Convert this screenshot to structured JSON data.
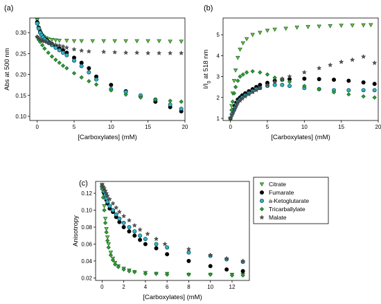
{
  "chart_data": [
    {
      "panel_label": "(a)",
      "type": "scatter",
      "xlabel": "[Carboxylates] (mM)",
      "ylabel": "Abs at 500 nm",
      "xlim": [
        -1,
        20
      ],
      "ylim": [
        0.09,
        0.335
      ],
      "xticks": [
        0,
        5,
        10,
        15,
        20
      ],
      "yticks": [
        0.1,
        0.15,
        0.2,
        0.25,
        0.3
      ],
      "ytick_labels": [
        "0.10",
        "0.15",
        "0.20",
        "0.25",
        "0.30"
      ],
      "series": [
        {
          "key": "citrate",
          "x": [
            0,
            0.1,
            0.2,
            0.35,
            0.5,
            0.7,
            0.9,
            1.2,
            1.5,
            2,
            2.5,
            3,
            4,
            5,
            6,
            7.5,
            9,
            10.5,
            12,
            13.5,
            15,
            16.5,
            18,
            19.5
          ],
          "y": [
            0.33,
            0.32,
            0.31,
            0.305,
            0.298,
            0.293,
            0.29,
            0.287,
            0.285,
            0.283,
            0.282,
            0.281,
            0.281,
            0.28,
            0.28,
            0.28,
            0.28,
            0.28,
            0.28,
            0.28,
            0.28,
            0.28,
            0.279,
            0.279
          ]
        },
        {
          "key": "fumarate",
          "x": [
            0,
            0.2,
            0.4,
            0.6,
            0.8,
            1.0,
            1.3,
            1.6,
            2.0,
            2.5,
            3,
            3.5,
            4,
            5,
            6,
            7,
            8,
            10,
            12,
            14,
            16,
            18,
            19.5
          ],
          "y": [
            0.325,
            0.312,
            0.302,
            0.295,
            0.29,
            0.285,
            0.282,
            0.277,
            0.273,
            0.268,
            0.263,
            0.258,
            0.252,
            0.24,
            0.228,
            0.215,
            0.195,
            0.175,
            0.16,
            0.148,
            0.135,
            0.122,
            0.112
          ]
        },
        {
          "key": "aketoglutarate",
          "x": [
            0,
            0.2,
            0.4,
            0.6,
            0.8,
            1.0,
            1.3,
            1.6,
            2.0,
            2.5,
            3,
            3.5,
            4,
            5,
            6,
            7,
            8,
            10,
            12,
            14,
            16,
            18,
            19.5
          ],
          "y": [
            0.322,
            0.31,
            0.3,
            0.294,
            0.289,
            0.284,
            0.28,
            0.275,
            0.27,
            0.264,
            0.258,
            0.252,
            0.246,
            0.233,
            0.22,
            0.205,
            0.188,
            0.165,
            0.158,
            0.15,
            0.14,
            0.128,
            0.118
          ]
        },
        {
          "key": "tricarballylate",
          "x": [
            0,
            0.2,
            0.4,
            0.7,
            1.0,
            1.5,
            2.0,
            2.5,
            3,
            3.5,
            4,
            5,
            6,
            7,
            8,
            10,
            12,
            14,
            16,
            18,
            19.5
          ],
          "y": [
            0.29,
            0.283,
            0.278,
            0.27,
            0.262,
            0.252,
            0.243,
            0.235,
            0.228,
            0.221,
            0.215,
            0.203,
            0.193,
            0.184,
            0.176,
            0.162,
            0.152,
            0.145,
            0.14,
            0.137,
            0.135
          ]
        },
        {
          "key": "malate",
          "x": [
            0,
            0.2,
            0.4,
            0.6,
            0.8,
            1.0,
            1.3,
            1.6,
            2.0,
            2.5,
            3,
            3.5,
            4,
            5,
            6,
            7,
            9,
            10.5,
            12,
            13.5,
            15,
            16.5,
            18,
            19.5
          ],
          "y": [
            0.29,
            0.287,
            0.284,
            0.282,
            0.28,
            0.279,
            0.277,
            0.275,
            0.273,
            0.271,
            0.269,
            0.267,
            0.264,
            0.26,
            0.257,
            0.255,
            0.254,
            0.253,
            0.252,
            0.252,
            0.251,
            0.251,
            0.251,
            0.251
          ]
        }
      ]
    },
    {
      "panel_label": "(b)",
      "type": "scatter",
      "xlabel": "[Carboxylates] (mM)",
      "ylabel": "I/I0 at 518 nm",
      "ylabel_main": "I/I",
      "ylabel_sub": "0",
      "ylabel_rest": " at 518 nm",
      "xlim": [
        -1,
        20
      ],
      "ylim": [
        0.9,
        5.8
      ],
      "xticks": [
        0,
        5,
        10,
        15,
        20
      ],
      "yticks": [
        1,
        2,
        3,
        4,
        5
      ],
      "ytick_labels": [
        "1",
        "2",
        "3",
        "4",
        "5"
      ],
      "series": [
        {
          "key": "citrate",
          "x": [
            0,
            0.15,
            0.3,
            0.5,
            0.7,
            1.0,
            1.3,
            1.7,
            2.2,
            3,
            4,
            5,
            6,
            7.5,
            9,
            10.5,
            12,
            13.5,
            15,
            16.5,
            18,
            19
          ],
          "y": [
            1.0,
            1.6,
            2.2,
            2.8,
            3.3,
            3.9,
            4.3,
            4.6,
            4.8,
            5.0,
            5.1,
            5.2,
            5.25,
            5.3,
            5.35,
            5.38,
            5.4,
            5.42,
            5.44,
            5.45,
            5.46,
            5.47
          ]
        },
        {
          "key": "fumarate",
          "x": [
            0,
            0.2,
            0.4,
            0.6,
            0.8,
            1.0,
            1.3,
            1.6,
            2.0,
            2.5,
            3,
            3.5,
            4,
            5,
            6,
            7,
            8,
            10,
            12,
            14,
            16,
            18,
            19.5
          ],
          "y": [
            1.0,
            1.2,
            1.4,
            1.6,
            1.75,
            1.9,
            2.0,
            2.1,
            2.2,
            2.3,
            2.4,
            2.5,
            2.6,
            2.7,
            2.8,
            2.85,
            2.88,
            2.9,
            2.88,
            2.85,
            2.8,
            2.72,
            2.65
          ]
        },
        {
          "key": "aketoglutarate",
          "x": [
            0,
            0.2,
            0.4,
            0.6,
            0.8,
            1.0,
            1.3,
            1.6,
            2.0,
            2.5,
            3,
            3.5,
            4,
            5,
            6,
            7,
            8,
            10,
            12,
            14,
            16,
            18,
            19.5
          ],
          "y": [
            1.0,
            1.2,
            1.35,
            1.5,
            1.65,
            1.8,
            1.9,
            2.0,
            2.1,
            2.2,
            2.3,
            2.4,
            2.45,
            2.55,
            2.6,
            2.6,
            2.55,
            2.45,
            2.4,
            2.35,
            2.35,
            2.35,
            2.35
          ]
        },
        {
          "key": "tricarballylate",
          "x": [
            0,
            0.15,
            0.3,
            0.5,
            0.7,
            1.0,
            1.3,
            1.7,
            2.2,
            3,
            4,
            5,
            6,
            7,
            8,
            10,
            12,
            14,
            16,
            18,
            19.5
          ],
          "y": [
            1.0,
            1.4,
            1.8,
            2.2,
            2.5,
            2.8,
            3.0,
            3.1,
            3.2,
            3.25,
            3.2,
            3.1,
            2.95,
            2.85,
            2.75,
            2.55,
            2.4,
            2.25,
            2.15,
            2.05,
            2.0
          ]
        },
        {
          "key": "malate",
          "x": [
            0,
            0.2,
            0.4,
            0.6,
            0.8,
            1.0,
            1.3,
            1.6,
            2.0,
            2.5,
            3,
            3.5,
            4,
            5,
            6,
            7,
            8,
            10,
            12,
            13.5,
            15,
            16.5,
            18,
            19.5
          ],
          "y": [
            1.0,
            1.15,
            1.3,
            1.45,
            1.6,
            1.75,
            1.85,
            1.95,
            2.05,
            2.15,
            2.25,
            2.35,
            2.45,
            2.6,
            2.75,
            2.9,
            3.0,
            3.2,
            3.4,
            3.55,
            3.7,
            3.8,
            3.95,
            3.65
          ]
        }
      ]
    },
    {
      "panel_label": "(c)",
      "type": "scatter",
      "xlabel": "[Carboxylates] (mM)",
      "ylabel": "Anisotropy",
      "xlim": [
        -0.6,
        13.6
      ],
      "ylim": [
        0.017,
        0.134
      ],
      "xticks": [
        0,
        2,
        4,
        6,
        8,
        10,
        12
      ],
      "yticks": [
        0.02,
        0.04,
        0.06,
        0.08,
        0.1,
        0.12
      ],
      "ytick_labels": [
        "0.02",
        "0.04",
        "0.06",
        "0.08",
        "0.10",
        "0.12"
      ],
      "series": [
        {
          "key": "citrate",
          "x": [
            0,
            0.1,
            0.2,
            0.3,
            0.4,
            0.5,
            0.6,
            0.8,
            1.0,
            1.2,
            1.5,
            2.0,
            2.5,
            3.0,
            4.0,
            5.0,
            6.0,
            8.0,
            10.0,
            12.0,
            13.0
          ],
          "y": [
            0.13,
            0.12,
            0.105,
            0.09,
            0.078,
            0.068,
            0.06,
            0.05,
            0.043,
            0.038,
            0.034,
            0.031,
            0.029,
            0.027,
            0.026,
            0.025,
            0.025,
            0.024,
            0.024,
            0.024,
            0.024
          ]
        },
        {
          "key": "fumarate",
          "x": [
            0,
            0.1,
            0.2,
            0.3,
            0.4,
            0.5,
            0.7,
            1.0,
            1.3,
            1.6,
            2.0,
            2.5,
            3.0,
            3.5,
            4.0,
            5.0,
            6.0,
            8.0,
            10.0,
            11.5,
            13.0
          ],
          "y": [
            0.128,
            0.125,
            0.12,
            0.116,
            0.112,
            0.108,
            0.102,
            0.098,
            0.092,
            0.086,
            0.08,
            0.075,
            0.07,
            0.065,
            0.06,
            0.055,
            0.048,
            0.04,
            0.034,
            0.03,
            0.028
          ]
        },
        {
          "key": "aketoglutarate",
          "x": [
            0,
            0.1,
            0.2,
            0.3,
            0.4,
            0.5,
            0.7,
            1.0,
            1.3,
            1.6,
            2.0,
            2.5,
            3.0,
            3.5,
            4.0,
            5.0,
            6.0,
            8.0,
            10.0,
            11.5,
            13.0
          ],
          "y": [
            0.128,
            0.126,
            0.122,
            0.118,
            0.114,
            0.11,
            0.105,
            0.1,
            0.095,
            0.09,
            0.085,
            0.08,
            0.075,
            0.07,
            0.066,
            0.06,
            0.056,
            0.05,
            0.046,
            0.042,
            0.039
          ]
        },
        {
          "key": "tricarballylate",
          "x": [
            0,
            0.1,
            0.2,
            0.3,
            0.4,
            0.5,
            0.6,
            0.8,
            1.0,
            1.2,
            1.5,
            2.0,
            2.5,
            3.0,
            4.0,
            5.0,
            6.0,
            8.0,
            10.0,
            12.0,
            13.0
          ],
          "y": [
            0.125,
            0.115,
            0.1,
            0.085,
            0.074,
            0.064,
            0.056,
            0.047,
            0.041,
            0.036,
            0.033,
            0.03,
            0.028,
            0.027,
            0.025,
            0.025,
            0.024,
            0.024,
            0.024,
            0.023,
            0.023
          ]
        },
        {
          "key": "malate",
          "x": [
            0,
            0.1,
            0.2,
            0.3,
            0.4,
            0.5,
            0.7,
            1.0,
            1.3,
            1.6,
            2.0,
            2.5,
            3.0,
            3.5,
            4.2,
            5.0,
            5.8,
            8.0,
            10.0,
            11.5,
            13.0
          ],
          "y": [
            0.13,
            0.128,
            0.126,
            0.123,
            0.12,
            0.117,
            0.113,
            0.108,
            0.103,
            0.098,
            0.093,
            0.088,
            0.082,
            0.077,
            0.072,
            0.066,
            0.06,
            0.054,
            0.047,
            0.043,
            0.04
          ]
        }
      ]
    }
  ],
  "legend": {
    "placement": "right-of-panel-c",
    "items": [
      {
        "key": "citrate",
        "label": "Citrate",
        "marker": "triangle-down",
        "color": "#7dc242",
        "stroke": "#1a6b2a"
      },
      {
        "key": "fumarate",
        "label": "Fumarate",
        "marker": "circle",
        "color": "#000000",
        "stroke": "#000000"
      },
      {
        "key": "aketoglutarate",
        "label": "a-Ketoglutarate",
        "marker": "circle",
        "color": "#34b3c6",
        "stroke": "#0b4f5a"
      },
      {
        "key": "tricarballylate",
        "label": "Tricarballylate",
        "marker": "diamond",
        "color": "#2c9e3a",
        "stroke": "#1f6f28"
      },
      {
        "key": "malate",
        "label": "Malate",
        "marker": "star",
        "color": "#555555",
        "stroke": "#333333"
      }
    ]
  }
}
